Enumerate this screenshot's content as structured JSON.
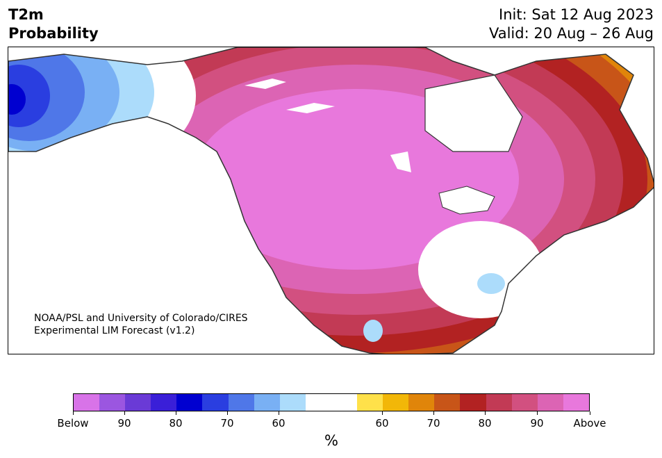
{
  "header": {
    "title_line1": "T2m",
    "title_line2": "Probability",
    "init": "Init: Sat 12 Aug 2023",
    "valid": "Valid: 20 Aug – 26 Aug"
  },
  "credit": {
    "line1": "NOAA/PSL and University of Colorado/CIRES",
    "line2": "Experimental LIM Forecast (v1.2)"
  },
  "colorbar": {
    "unit": "%",
    "colors": [
      "#d873e8",
      "#9b56e0",
      "#6a3ad6",
      "#3a1fd8",
      "#0000d0",
      "#2a3ee0",
      "#4f77e8",
      "#79b0f4",
      "#acdcfb",
      "#ffffff",
      "#ffffff",
      "#ffe14a",
      "#f2b708",
      "#e0850a",
      "#c85518",
      "#b22222",
      "#c23a55",
      "#d25080",
      "#dc64b4",
      "#e878dc"
    ],
    "tick_labels": [
      "Below",
      "90",
      "80",
      "70",
      "60",
      "60",
      "70",
      "80",
      "90",
      "Above"
    ]
  },
  "map": {
    "colors": {
      "above_extreme": "#e878dc",
      "above_90": "#dc64b4",
      "above_85": "#d25080",
      "above_80": "#c23a55",
      "above_75": "#b22222",
      "above_70": "#c85518",
      "above_65": "#e0850a",
      "above_60": "#f2b708",
      "above_55": "#ffe14a",
      "below_55": "#acdcfb",
      "below_60": "#79b0f4",
      "below_65": "#4f77e8",
      "below_70": "#2a3ee0",
      "below_75": "#0000d0",
      "coastline": "#333333"
    }
  }
}
